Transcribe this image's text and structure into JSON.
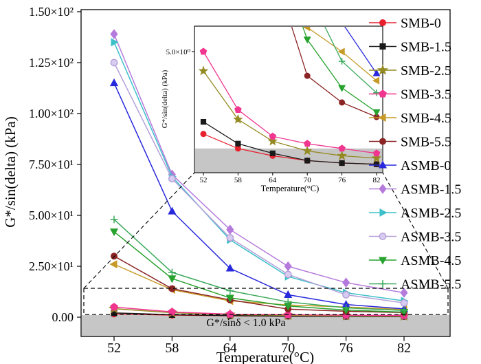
{
  "figure": {
    "xlabel": "Temperature(°C)",
    "ylabel": "G*/sin(delta) (kPa)",
    "threshold_label": "G*/sinδ < 1.0 kPa"
  },
  "chart_data": {
    "type": "line",
    "title": "",
    "xlabel": "Temperature(°C)",
    "ylabel": "G*/sin(delta) (kPa)",
    "x": [
      52,
      58,
      64,
      70,
      76,
      82
    ],
    "x_tick_labels": [
      "52",
      "58",
      "64",
      "70",
      "76",
      "82"
    ],
    "y_ticks": [
      0,
      25,
      50,
      75,
      100,
      125,
      150
    ],
    "y_tick_labels": [
      "0.00",
      "2.50×10¹",
      "5.00×10¹",
      "7.50×10¹",
      "1.00×10²",
      "1.25×10²",
      "1.50×10²"
    ],
    "ylim": [
      0,
      150
    ],
    "legend_position": "right",
    "grid": false,
    "threshold_label": "G*/sinδ < 1.0 kPa",
    "threshold_value": 1.0,
    "series": [
      {
        "name": "SMB-0",
        "color": "#e8212e",
        "marker": "circle",
        "values": [
          1.6,
          1.0,
          0.7,
          0.5,
          0.4,
          0.35
        ]
      },
      {
        "name": "SMB-1.5",
        "color": "#1a1a1a",
        "marker": "square",
        "values": [
          2.1,
          1.2,
          0.8,
          0.5,
          0.4,
          0.35
        ]
      },
      {
        "name": "SMB-2.5",
        "color": "#948a22",
        "marker": "star",
        "values": [
          4.2,
          2.2,
          1.3,
          0.9,
          0.7,
          0.6
        ]
      },
      {
        "name": "SMB-3.5",
        "color": "#f0368f",
        "marker": "pentagon",
        "values": [
          5.0,
          2.6,
          1.5,
          1.2,
          1.0,
          0.8
        ]
      },
      {
        "name": "SMB-4.5",
        "color": "#c79a27",
        "marker": "triangle-left",
        "values": [
          26,
          13.5,
          8.0,
          6.0,
          5.0,
          3.8
        ]
      },
      {
        "name": "SMB-5.5",
        "color": "#8b2525",
        "marker": "circle",
        "values": [
          30,
          14,
          8.5,
          4.0,
          2.9,
          2.3
        ]
      },
      {
        "name": "ASMB-0",
        "color": "#2828dc",
        "marker": "triangle-up",
        "values": [
          115,
          52,
          24,
          11,
          6.2,
          4.1
        ]
      },
      {
        "name": "ASMB-1.5",
        "color": "#b57bdc",
        "marker": "diamond",
        "values": [
          139,
          70,
          43,
          25,
          17,
          12
        ]
      },
      {
        "name": "ASMB-2.5",
        "color": "#3cc0c9",
        "marker": "triangle-right",
        "values": [
          135,
          69,
          38,
          20,
          12,
          8
        ]
      },
      {
        "name": "ASMB-3.5",
        "color": "#b49fd8",
        "marker": "circle-open",
        "fill": "#d8ccf0",
        "values": [
          125,
          68,
          39,
          21,
          11,
          7
        ]
      },
      {
        "name": "ASMB-4.5",
        "color": "#27a22e",
        "marker": "triangle-down",
        "values": [
          42,
          19,
          9.5,
          5.5,
          3.5,
          2.5
        ]
      },
      {
        "name": "ASMB-5.5",
        "color": "#3aa85a",
        "marker": "plus",
        "values": [
          48,
          22,
          13,
          7.5,
          4.6,
          3.3
        ]
      }
    ],
    "inset": {
      "xlabel": "Temperature(°C)",
      "ylabel": "G*/sin(delta) (kPa)",
      "y_ticks": [
        5.0
      ],
      "y_tick_labels": [
        "5.0×10⁰"
      ],
      "ylim": [
        0,
        6.05
      ]
    },
    "colors": {
      "shade": "#c6c6c6",
      "axis": "#000000"
    }
  }
}
